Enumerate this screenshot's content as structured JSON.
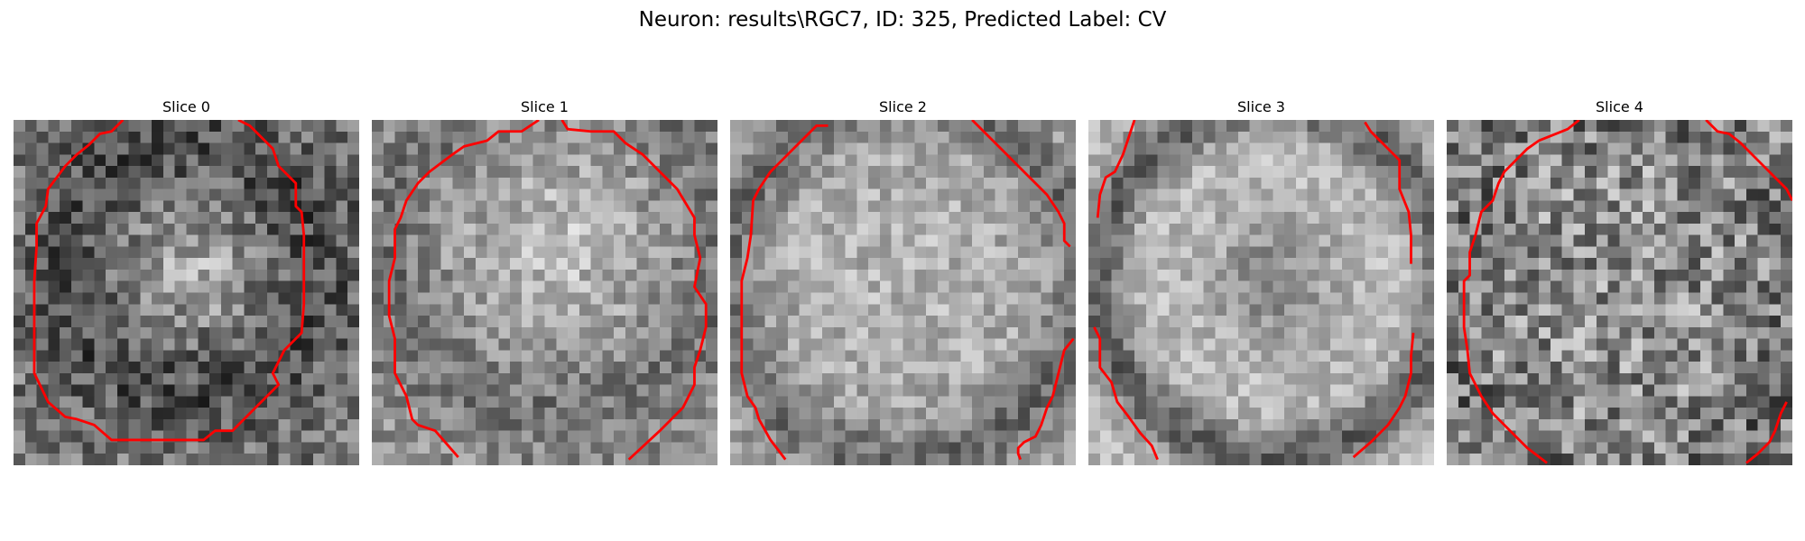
{
  "figure": {
    "suptitle": "Neuron: results\\RGC7, ID: 325, Predicted Label: CV",
    "contour_color": "#ff0000",
    "colormap": "gray"
  },
  "panels": [
    {
      "title": "Slice 0"
    },
    {
      "title": "Slice 1"
    },
    {
      "title": "Slice 2"
    },
    {
      "title": "Slice 3"
    },
    {
      "title": "Slice 4"
    }
  ]
}
